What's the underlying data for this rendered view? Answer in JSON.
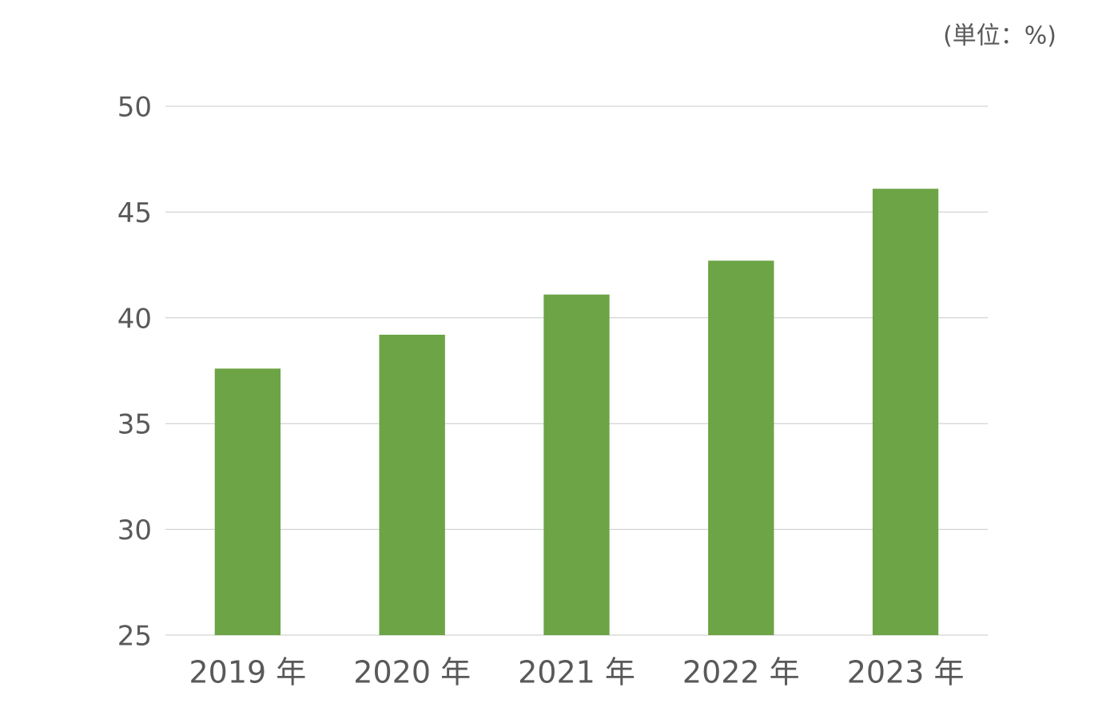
{
  "chart_data": {
    "type": "bar",
    "unit_label": "(単位：%)",
    "categories": [
      "2019 年",
      "2020 年",
      "2021 年",
      "2022 年",
      "2023 年"
    ],
    "values": [
      37.6,
      39.2,
      41.1,
      42.7,
      46.1
    ],
    "color": "#6ca446",
    "ylim": [
      25,
      50
    ],
    "yticks": [
      25,
      30,
      35,
      40,
      45,
      50
    ],
    "grid": true
  }
}
